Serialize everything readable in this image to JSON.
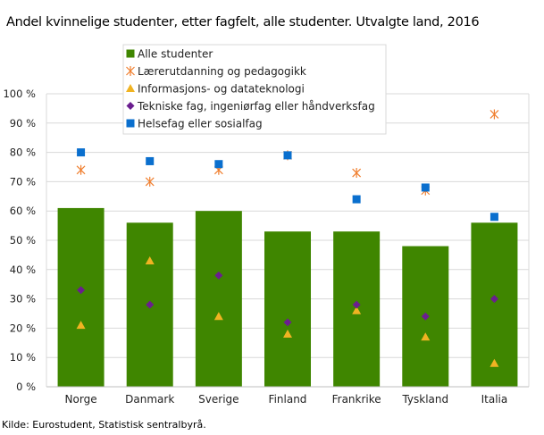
{
  "chart_data": {
    "type": "bar",
    "title": "Andel kvinnelige studenter, etter fagfelt, alle studenter. Utvalgte land, 2016",
    "source": "Kilde: Eurostudent, Statistisk sentralbyrå.",
    "categories": [
      "Norge",
      "Danmark",
      "Sverige",
      "Finland",
      "Frankrike",
      "Tyskland",
      "Italia"
    ],
    "ylim": [
      0,
      100
    ],
    "yticks": [
      "0 %",
      "10 %",
      "20 %",
      "30 %",
      "40 %",
      "50 %",
      "60 %",
      "70 %",
      "80 %",
      "90 %",
      "100 %"
    ],
    "grid": true,
    "legend_placement": "top-center",
    "series": [
      {
        "name": "Alle studenter",
        "kind": "bar",
        "marker": "square",
        "color": "#3f8600",
        "values": [
          61,
          56,
          60,
          53,
          53,
          48,
          56
        ]
      },
      {
        "name": "Lærerutdanning og  pedagogikk",
        "kind": "scatter",
        "marker": "asterisk",
        "color": "#f07f2f",
        "values": [
          74,
          70,
          74,
          79,
          73,
          67,
          93
        ]
      },
      {
        "name": "Informasjons- og datateknologi",
        "kind": "scatter",
        "marker": "triangle",
        "color": "#f0b322",
        "values": [
          21,
          43,
          24,
          18,
          26,
          17,
          8
        ]
      },
      {
        "name": "Tekniske fag, ingeniørfag eller håndverksfag",
        "kind": "scatter",
        "marker": "diamond",
        "color": "#6b1e8f",
        "values": [
          33,
          28,
          38,
          22,
          28,
          24,
          30
        ]
      },
      {
        "name": "Helsefag eller sosialfag",
        "kind": "scatter",
        "marker": "square",
        "color": "#0a6fce",
        "values": [
          80,
          77,
          76,
          79,
          64,
          68,
          58
        ]
      }
    ]
  }
}
